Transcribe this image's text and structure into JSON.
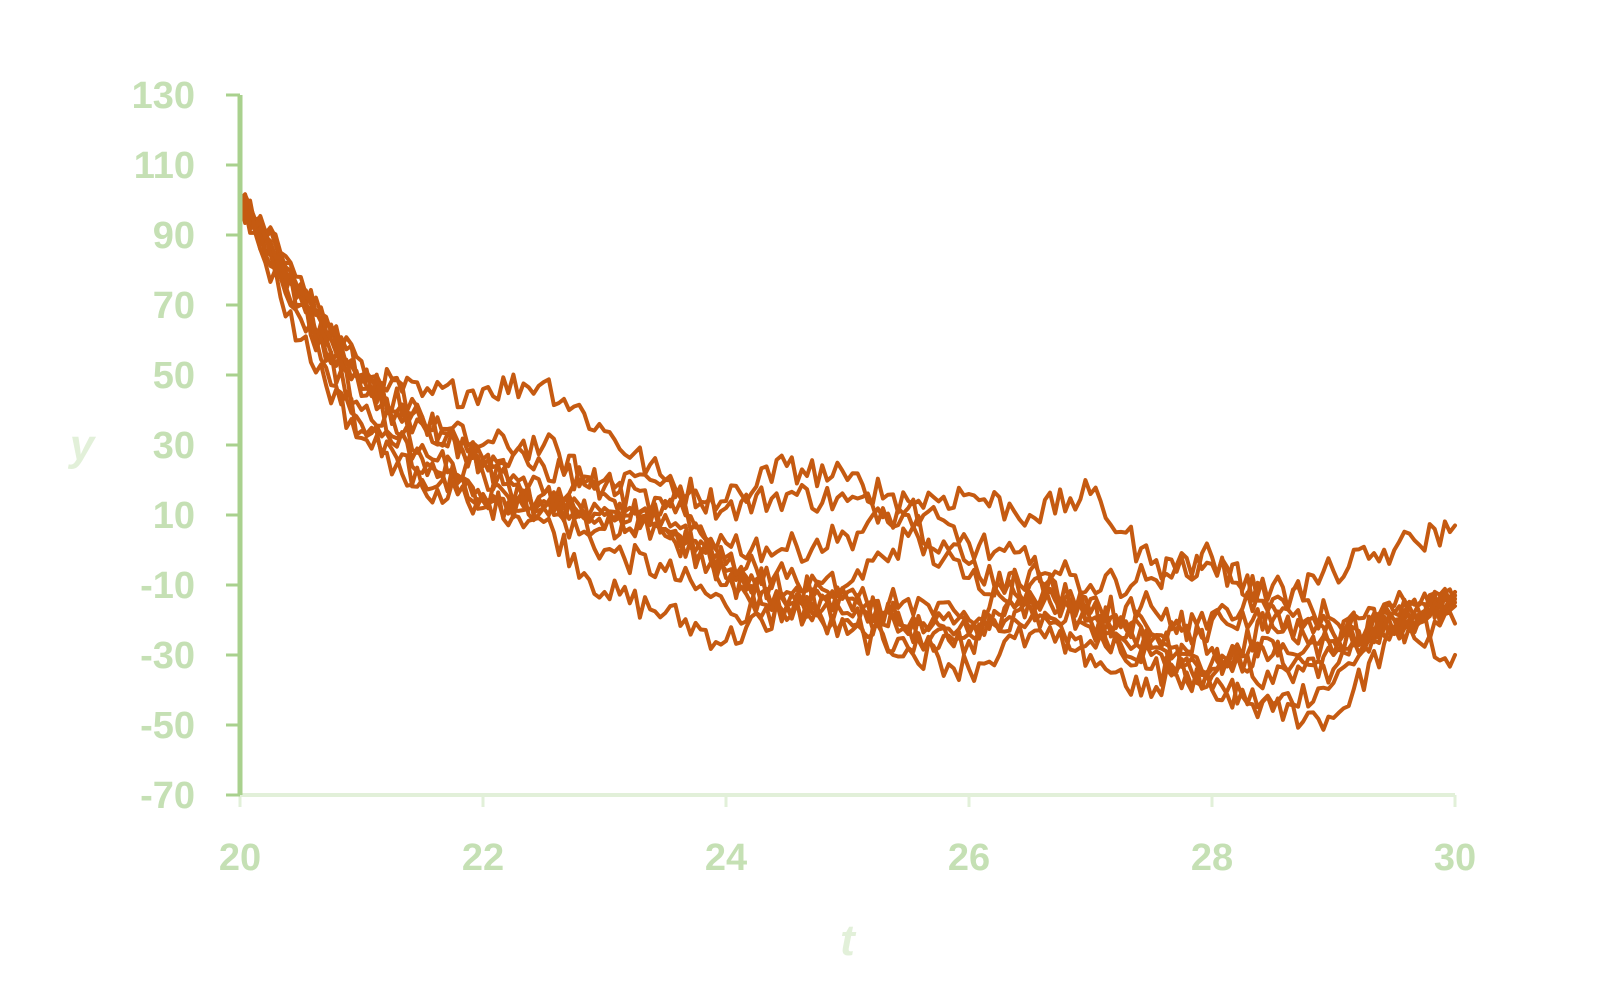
{
  "chart_data": {
    "type": "line",
    "title": "",
    "xlabel": "t",
    "ylabel": "y",
    "xlim": [
      20,
      30
    ],
    "ylim": [
      -70,
      130
    ],
    "xticks": [
      20,
      22,
      24,
      26,
      28,
      30
    ],
    "yticks": [
      -70,
      -50,
      -30,
      -10,
      10,
      30,
      50,
      70,
      90,
      110,
      130
    ],
    "xtick_labels": [
      "20",
      "22",
      "24",
      "26",
      "28",
      "30"
    ],
    "ytick_labels": [
      "-70",
      "-50",
      "-30",
      "-10",
      "10",
      "30",
      "50",
      "70",
      "90",
      "110",
      "130"
    ],
    "grid": false,
    "legend": "none",
    "colors": {
      "series": "#c55a11",
      "axis_y": "#a9d18e",
      "axis_x": "#e2f0d9",
      "tick_labels": "#c5e0b4",
      "xlabel": "#e2f0d9",
      "ylabel": "#e2f0d9"
    },
    "x": [
      20,
      20.5,
      21,
      21.5,
      22,
      22.5,
      23,
      23.5,
      24,
      24.5,
      25,
      25.5,
      26,
      26.5,
      27,
      27.5,
      28,
      28.5,
      29,
      29.5,
      30
    ],
    "series": [
      {
        "values": [
          100,
          72,
          40,
          30,
          12,
          14,
          12,
          6,
          -6,
          -16,
          -14,
          -24,
          -24,
          -12,
          -22,
          -30,
          -40,
          -44,
          -38,
          -18,
          -16
        ]
      },
      {
        "values": [
          100,
          74,
          46,
          22,
          16,
          12,
          0,
          -6,
          -16,
          -20,
          -12,
          -22,
          -26,
          -16,
          -20,
          -24,
          -32,
          -30,
          -34,
          -20,
          -15
        ]
      },
      {
        "values": [
          100,
          70,
          36,
          26,
          14,
          8,
          -12,
          -18,
          -26,
          -16,
          -24,
          -28,
          -24,
          -14,
          -18,
          -28,
          -40,
          -46,
          -48,
          -24,
          -14
        ]
      },
      {
        "values": [
          100,
          76,
          50,
          44,
          46,
          48,
          34,
          20,
          12,
          16,
          14,
          10,
          -4,
          -12,
          -20,
          -16,
          -28,
          -38,
          -30,
          -16,
          -13
        ]
      },
      {
        "values": [
          100,
          70,
          44,
          36,
          30,
          30,
          16,
          4,
          -2,
          -8,
          -14,
          -22,
          -20,
          -6,
          -20,
          -34,
          -36,
          -26,
          -30,
          -22,
          -21
        ]
      },
      {
        "values": [
          100,
          66,
          34,
          18,
          14,
          16,
          6,
          10,
          -4,
          -12,
          -10,
          4,
          -8,
          -10,
          -14,
          -24,
          -34,
          -20,
          -26,
          -24,
          -12
        ]
      },
      {
        "values": [
          100,
          72,
          48,
          38,
          24,
          12,
          20,
          20,
          -10,
          -16,
          -20,
          -14,
          -22,
          -20,
          -26,
          -26,
          -18,
          -22,
          -24,
          -22,
          -30
        ]
      },
      {
        "values": [
          100,
          60,
          32,
          20,
          26,
          12,
          10,
          6,
          -8,
          -16,
          -18,
          -28,
          -34,
          -24,
          -30,
          -42,
          -20,
          -10,
          -20,
          -20,
          -13
        ]
      },
      {
        "values": [
          100,
          78,
          54,
          38,
          22,
          16,
          6,
          14,
          14,
          24,
          20,
          14,
          16,
          10,
          16,
          -4,
          -4,
          -14,
          -24,
          -18,
          -12
        ]
      },
      {
        "values": [
          100,
          74,
          50,
          36,
          26,
          24,
          18,
          12,
          2,
          0,
          4,
          12,
          2,
          -4,
          -10,
          -8,
          -2,
          -16,
          -6,
          0,
          7
        ]
      }
    ]
  }
}
